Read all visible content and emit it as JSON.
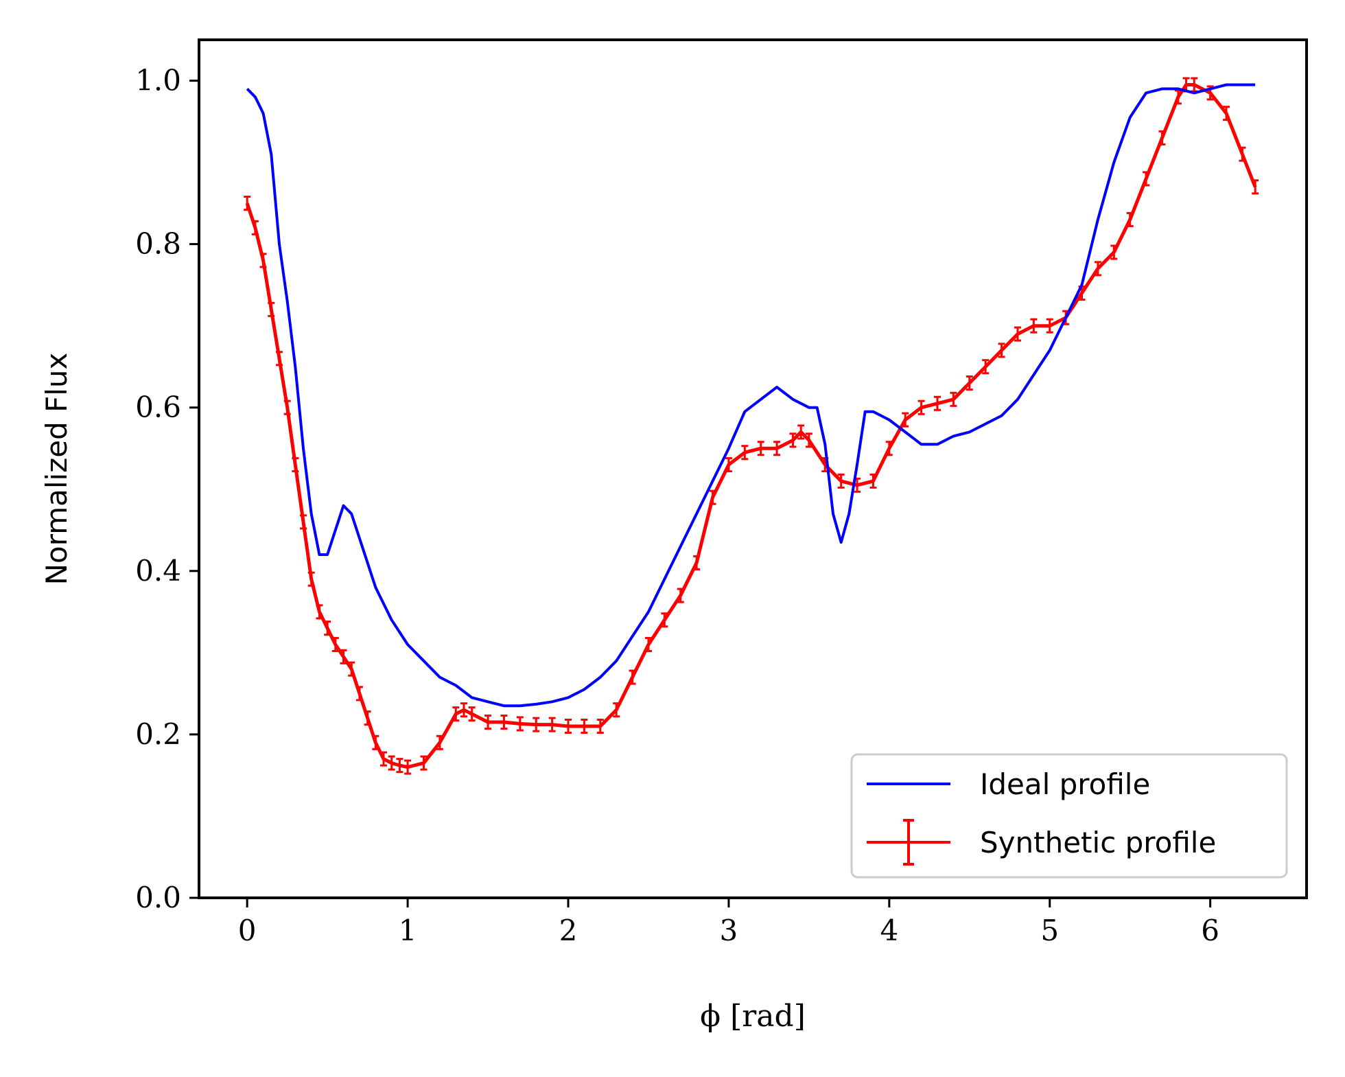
{
  "chart_data": {
    "type": "line",
    "xlabel": "ϕ [rad]",
    "ylabel": "Normalized Flux",
    "xlim": [
      -0.3,
      6.6
    ],
    "ylim": [
      0.0,
      1.05
    ],
    "xticks": [
      0,
      1,
      2,
      3,
      4,
      5,
      6
    ],
    "yticks": [
      0.0,
      0.2,
      0.4,
      0.6,
      0.8,
      1.0
    ],
    "xtick_labels": [
      "0",
      "1",
      "2",
      "3",
      "4",
      "5",
      "6"
    ],
    "ytick_labels": [
      "0.0",
      "0.2",
      "0.4",
      "0.6",
      "0.8",
      "1.0"
    ],
    "grid": false,
    "legend_position": "bottom-right",
    "series": [
      {
        "name": "Ideal profile",
        "color": "#0000ff",
        "style": "line",
        "x": [
          0.0,
          0.05,
          0.1,
          0.15,
          0.2,
          0.25,
          0.3,
          0.35,
          0.4,
          0.45,
          0.5,
          0.55,
          0.6,
          0.65,
          0.7,
          0.75,
          0.8,
          0.9,
          1.0,
          1.1,
          1.2,
          1.3,
          1.4,
          1.5,
          1.6,
          1.7,
          1.8,
          1.9,
          2.0,
          2.1,
          2.2,
          2.3,
          2.4,
          2.5,
          2.6,
          2.7,
          2.8,
          2.9,
          3.0,
          3.1,
          3.2,
          3.3,
          3.4,
          3.5,
          3.55,
          3.6,
          3.65,
          3.7,
          3.75,
          3.8,
          3.85,
          3.9,
          3.95,
          4.0,
          4.1,
          4.2,
          4.3,
          4.4,
          4.5,
          4.6,
          4.7,
          4.8,
          4.9,
          5.0,
          5.1,
          5.2,
          5.3,
          5.4,
          5.5,
          5.6,
          5.7,
          5.8,
          5.9,
          6.0,
          6.1,
          6.2,
          6.28
        ],
        "y": [
          0.99,
          0.98,
          0.96,
          0.91,
          0.8,
          0.73,
          0.65,
          0.55,
          0.47,
          0.42,
          0.42,
          0.45,
          0.48,
          0.47,
          0.44,
          0.41,
          0.38,
          0.34,
          0.31,
          0.29,
          0.27,
          0.26,
          0.245,
          0.24,
          0.235,
          0.235,
          0.237,
          0.24,
          0.245,
          0.255,
          0.27,
          0.29,
          0.32,
          0.35,
          0.39,
          0.43,
          0.47,
          0.51,
          0.55,
          0.595,
          0.61,
          0.625,
          0.61,
          0.6,
          0.6,
          0.555,
          0.47,
          0.435,
          0.47,
          0.53,
          0.595,
          0.595,
          0.59,
          0.585,
          0.57,
          0.555,
          0.555,
          0.565,
          0.57,
          0.58,
          0.59,
          0.61,
          0.64,
          0.67,
          0.71,
          0.75,
          0.83,
          0.9,
          0.955,
          0.985,
          0.99,
          0.99,
          0.985,
          0.99,
          0.995,
          0.995,
          0.995
        ]
      },
      {
        "name": "Synthetic profile",
        "color": "#ff0000",
        "style": "errorbar",
        "x": [
          0.0,
          0.05,
          0.1,
          0.15,
          0.2,
          0.25,
          0.3,
          0.35,
          0.4,
          0.45,
          0.5,
          0.55,
          0.6,
          0.65,
          0.7,
          0.75,
          0.8,
          0.85,
          0.9,
          0.95,
          1.0,
          1.1,
          1.2,
          1.3,
          1.35,
          1.4,
          1.5,
          1.6,
          1.7,
          1.8,
          1.9,
          2.0,
          2.1,
          2.2,
          2.3,
          2.4,
          2.5,
          2.6,
          2.7,
          2.8,
          2.9,
          3.0,
          3.1,
          3.2,
          3.3,
          3.4,
          3.45,
          3.5,
          3.6,
          3.7,
          3.8,
          3.9,
          4.0,
          4.1,
          4.2,
          4.3,
          4.4,
          4.5,
          4.6,
          4.7,
          4.8,
          4.9,
          5.0,
          5.1,
          5.2,
          5.3,
          5.4,
          5.5,
          5.6,
          5.7,
          5.8,
          5.85,
          5.9,
          6.0,
          6.1,
          6.2,
          6.28
        ],
        "y": [
          0.85,
          0.82,
          0.78,
          0.72,
          0.66,
          0.6,
          0.53,
          0.46,
          0.39,
          0.35,
          0.33,
          0.31,
          0.295,
          0.28,
          0.25,
          0.22,
          0.19,
          0.17,
          0.165,
          0.162,
          0.16,
          0.165,
          0.19,
          0.225,
          0.23,
          0.225,
          0.215,
          0.215,
          0.213,
          0.212,
          0.212,
          0.21,
          0.21,
          0.21,
          0.23,
          0.27,
          0.31,
          0.34,
          0.37,
          0.41,
          0.49,
          0.53,
          0.545,
          0.55,
          0.55,
          0.56,
          0.57,
          0.56,
          0.53,
          0.51,
          0.505,
          0.51,
          0.55,
          0.585,
          0.6,
          0.605,
          0.61,
          0.63,
          0.65,
          0.67,
          0.69,
          0.7,
          0.7,
          0.71,
          0.74,
          0.77,
          0.79,
          0.83,
          0.88,
          0.93,
          0.98,
          0.995,
          0.995,
          0.985,
          0.96,
          0.91,
          0.87
        ],
        "error": 0.008
      }
    ]
  }
}
